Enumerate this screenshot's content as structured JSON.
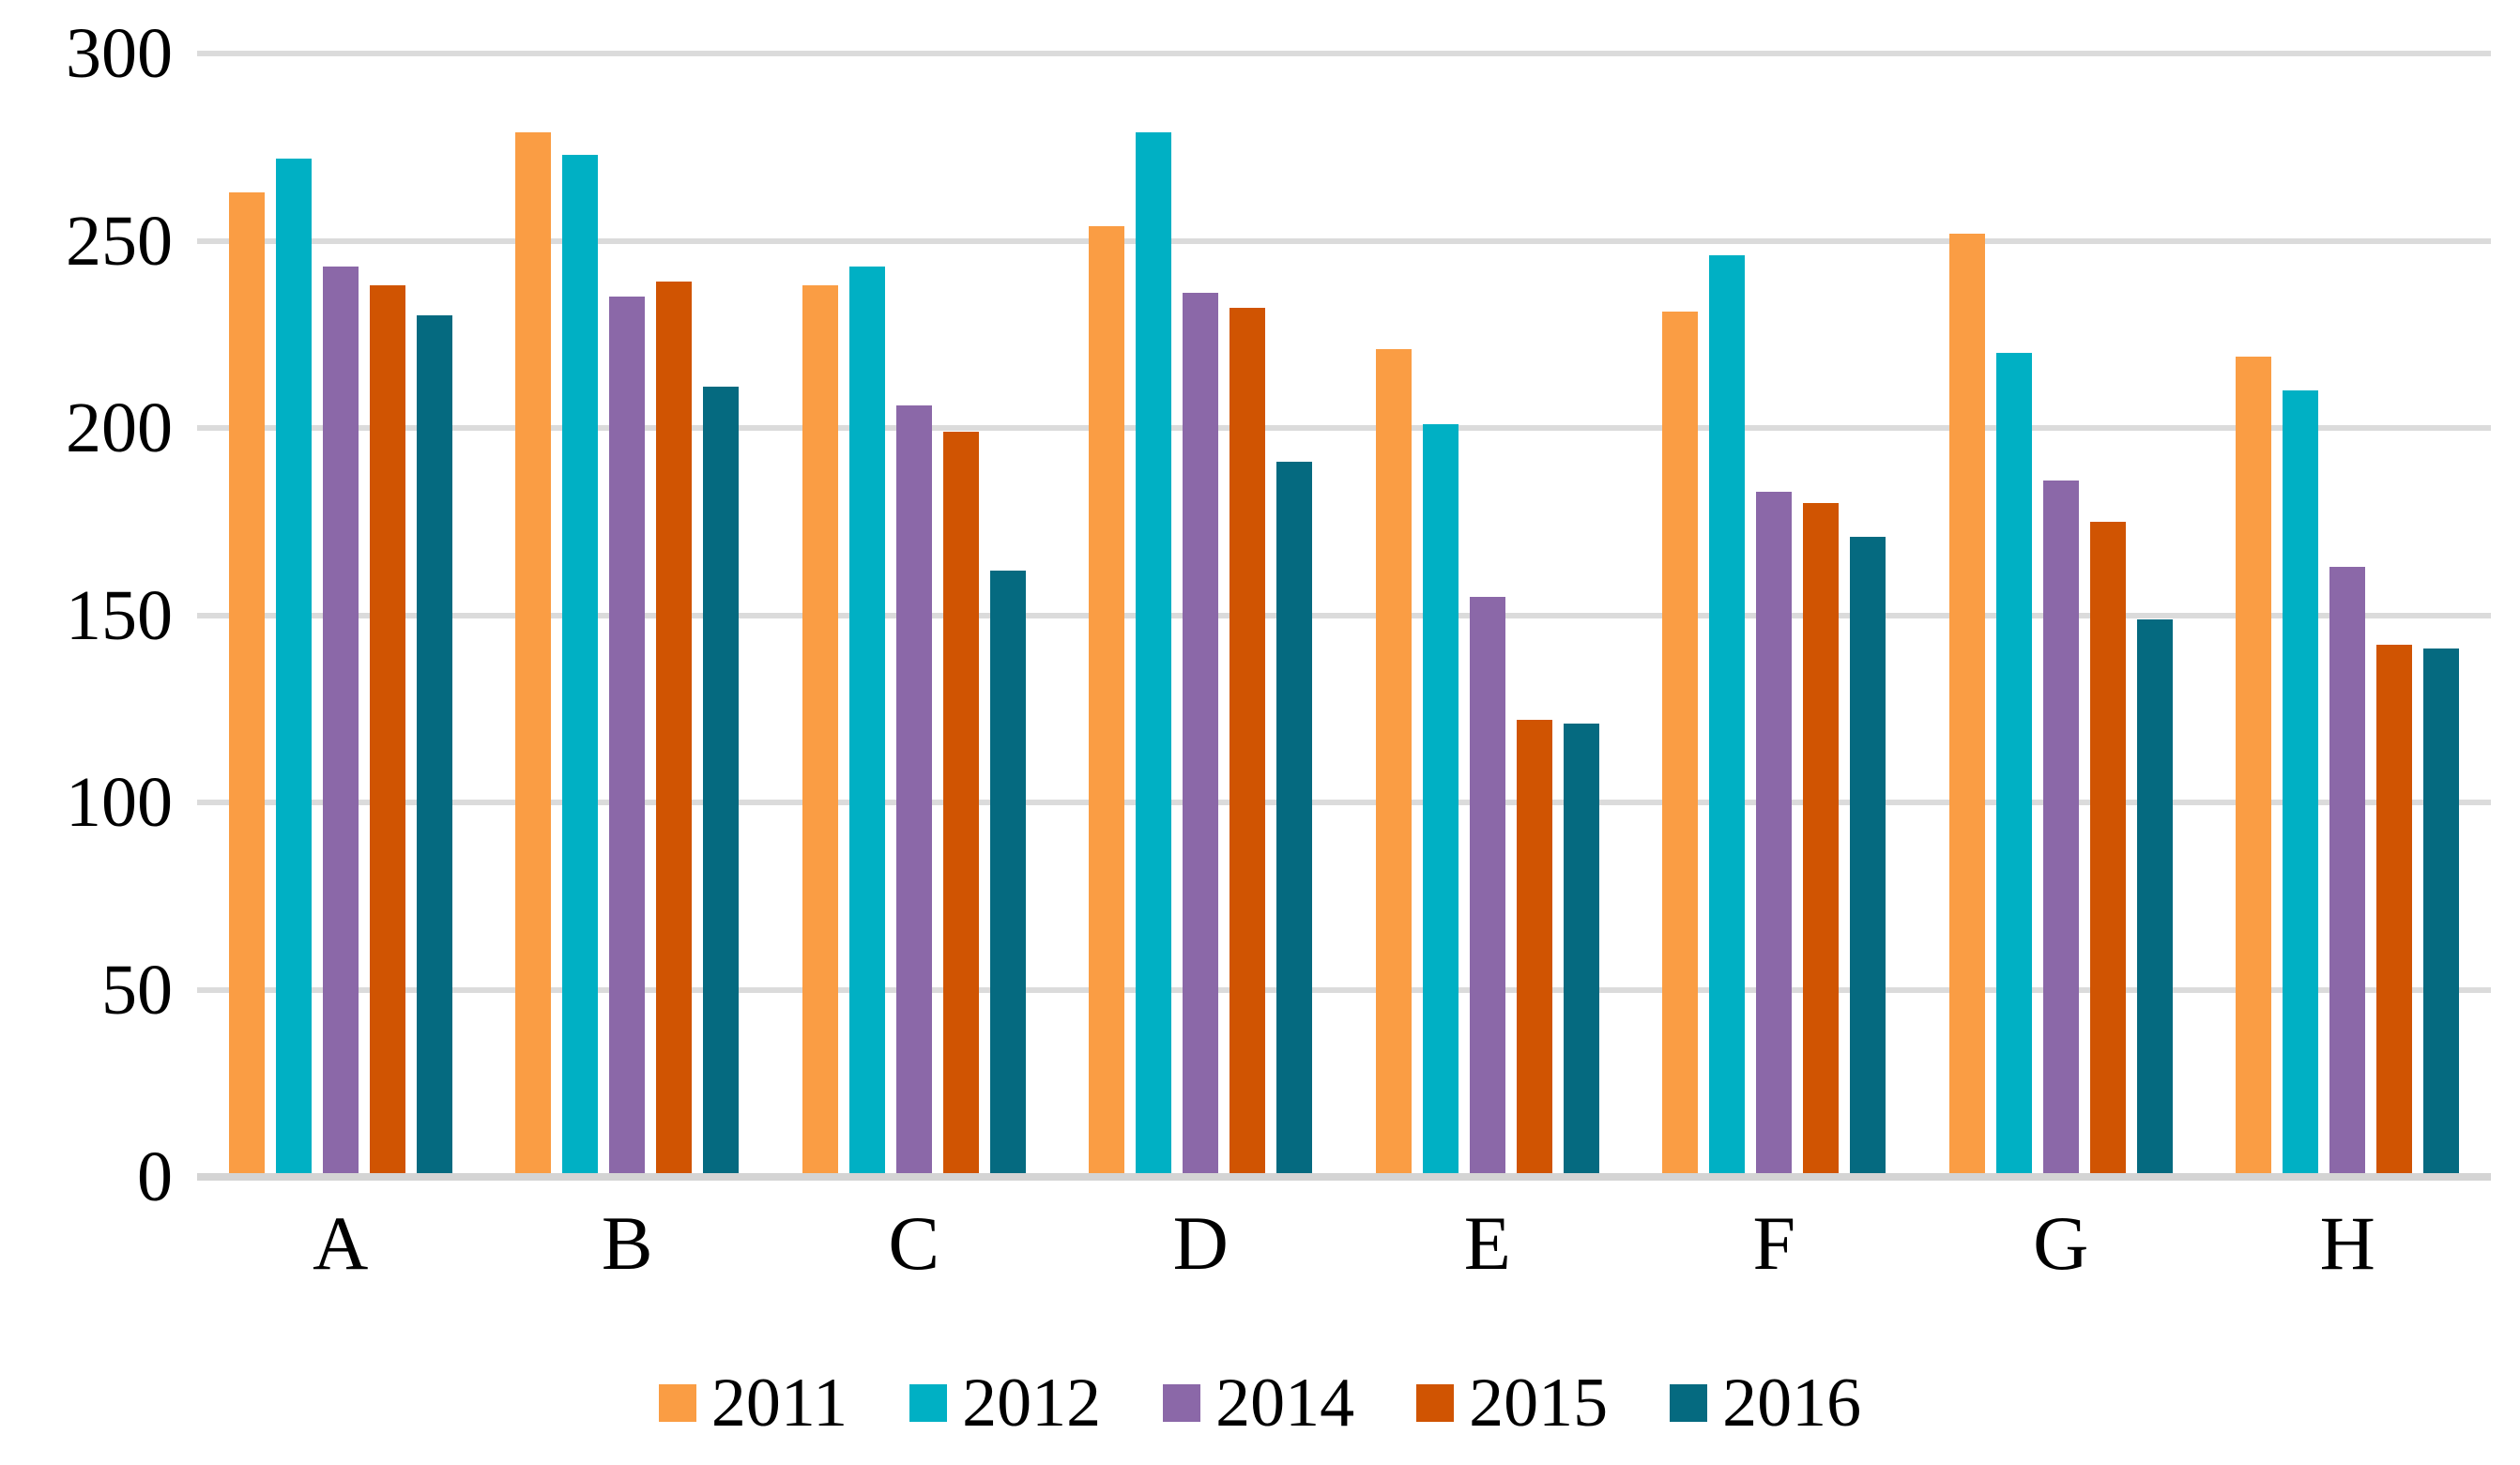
{
  "chart_data": {
    "type": "bar",
    "title": "",
    "xlabel": "",
    "ylabel": "",
    "categories": [
      "A",
      "B",
      "C",
      "D",
      "E",
      "F",
      "G",
      "H"
    ],
    "series": [
      {
        "name": "2011",
        "color": "#FA9D44",
        "values": [
          263,
          279,
          238,
          254,
          221,
          231,
          252,
          219
        ]
      },
      {
        "name": "2012",
        "color": "#00B0C4",
        "values": [
          272,
          273,
          243,
          279,
          201,
          246,
          220,
          210
        ]
      },
      {
        "name": "2014",
        "color": "#8B68A8",
        "values": [
          243,
          235,
          206,
          236,
          155,
          183,
          186,
          163
        ]
      },
      {
        "name": "2015",
        "color": "#D05402",
        "values": [
          238,
          239,
          199,
          232,
          122,
          180,
          175,
          142
        ]
      },
      {
        "name": "2016",
        "color": "#056A80",
        "values": [
          230,
          211,
          162,
          191,
          121,
          171,
          149,
          141
        ]
      }
    ],
    "ylim": [
      0,
      300
    ],
    "yticks": [
      0,
      50,
      100,
      150,
      200,
      250,
      300
    ],
    "grid": true,
    "gridline_color": "#DBDBDB",
    "axis_line_color": "#D4D4D4",
    "legend_position": "bottom",
    "legend_labels": [
      "2011",
      "2012",
      "2014",
      "2015",
      "2016"
    ]
  }
}
